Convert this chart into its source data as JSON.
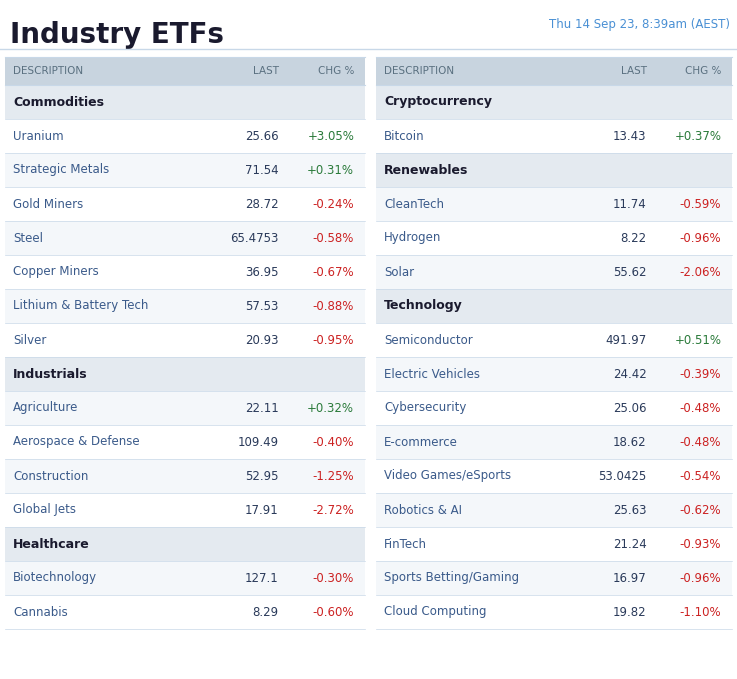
{
  "title": "Industry ETFs",
  "subtitle": "Thu 14 Sep 23, 8:39am (AEST)",
  "title_color": "#1a1a2e",
  "subtitle_color": "#4a90d4",
  "bg_color": "#ffffff",
  "header_bg": "#c8d4df",
  "category_bg": "#e4eaf0",
  "row_bg_odd": "#ffffff",
  "row_bg_even": "#f4f7fa",
  "header_text_color": "#5a7080",
  "category_text_color": "#1a1a2e",
  "item_text_color": "#3a5a8a",
  "last_text_color": "#2a3a5a",
  "positive_color": "#2a7a3a",
  "negative_color": "#cc2222",
  "divider_color": "#c8d8e8",
  "title_fontsize": 20,
  "subtitle_fontsize": 8.5,
  "header_fontsize": 7.5,
  "row_fontsize": 8.5,
  "left_table": {
    "rows": [
      {
        "type": "category",
        "name": "Commodities",
        "last": "",
        "chg": ""
      },
      {
        "type": "item",
        "name": "Uranium",
        "last": "25.66",
        "chg": "+3.05%"
      },
      {
        "type": "item",
        "name": "Strategic Metals",
        "last": "71.54",
        "chg": "+0.31%"
      },
      {
        "type": "item",
        "name": "Gold Miners",
        "last": "28.72",
        "chg": "-0.24%"
      },
      {
        "type": "item",
        "name": "Steel",
        "last": "65.4753",
        "chg": "-0.58%"
      },
      {
        "type": "item",
        "name": "Copper Miners",
        "last": "36.95",
        "chg": "-0.67%"
      },
      {
        "type": "item",
        "name": "Lithium & Battery Tech",
        "last": "57.53",
        "chg": "-0.88%"
      },
      {
        "type": "item",
        "name": "Silver",
        "last": "20.93",
        "chg": "-0.95%"
      },
      {
        "type": "category",
        "name": "Industrials",
        "last": "",
        "chg": ""
      },
      {
        "type": "item",
        "name": "Agriculture",
        "last": "22.11",
        "chg": "+0.32%"
      },
      {
        "type": "item",
        "name": "Aerospace & Defense",
        "last": "109.49",
        "chg": "-0.40%"
      },
      {
        "type": "item",
        "name": "Construction",
        "last": "52.95",
        "chg": "-1.25%"
      },
      {
        "type": "item",
        "name": "Global Jets",
        "last": "17.91",
        "chg": "-2.72%"
      },
      {
        "type": "category",
        "name": "Healthcare",
        "last": "",
        "chg": ""
      },
      {
        "type": "item",
        "name": "Biotechnology",
        "last": "127.1",
        "chg": "-0.30%"
      },
      {
        "type": "item",
        "name": "Cannabis",
        "last": "8.29",
        "chg": "-0.60%"
      }
    ]
  },
  "right_table": {
    "rows": [
      {
        "type": "category",
        "name": "Cryptocurrency",
        "last": "",
        "chg": ""
      },
      {
        "type": "item",
        "name": "Bitcoin",
        "last": "13.43",
        "chg": "+0.37%"
      },
      {
        "type": "category",
        "name": "Renewables",
        "last": "",
        "chg": ""
      },
      {
        "type": "item",
        "name": "CleanTech",
        "last": "11.74",
        "chg": "-0.59%"
      },
      {
        "type": "item",
        "name": "Hydrogen",
        "last": "8.22",
        "chg": "-0.96%"
      },
      {
        "type": "item",
        "name": "Solar",
        "last": "55.62",
        "chg": "-2.06%"
      },
      {
        "type": "category",
        "name": "Technology",
        "last": "",
        "chg": ""
      },
      {
        "type": "item",
        "name": "Semiconductor",
        "last": "491.97",
        "chg": "+0.51%"
      },
      {
        "type": "item",
        "name": "Electric Vehicles",
        "last": "24.42",
        "chg": "-0.39%"
      },
      {
        "type": "item",
        "name": "Cybersecurity",
        "last": "25.06",
        "chg": "-0.48%"
      },
      {
        "type": "item",
        "name": "E-commerce",
        "last": "18.62",
        "chg": "-0.48%"
      },
      {
        "type": "item",
        "name": "Video Games/eSports",
        "last": "53.0425",
        "chg": "-0.54%"
      },
      {
        "type": "item",
        "name": "Robotics & AI",
        "last": "25.63",
        "chg": "-0.62%"
      },
      {
        "type": "item",
        "name": "FinTech",
        "last": "21.24",
        "chg": "-0.93%"
      },
      {
        "type": "item",
        "name": "Sports Betting/Gaming",
        "last": "16.97",
        "chg": "-0.96%"
      },
      {
        "type": "item",
        "name": "Cloud Computing",
        "last": "19.82",
        "chg": "-1.10%"
      }
    ]
  }
}
